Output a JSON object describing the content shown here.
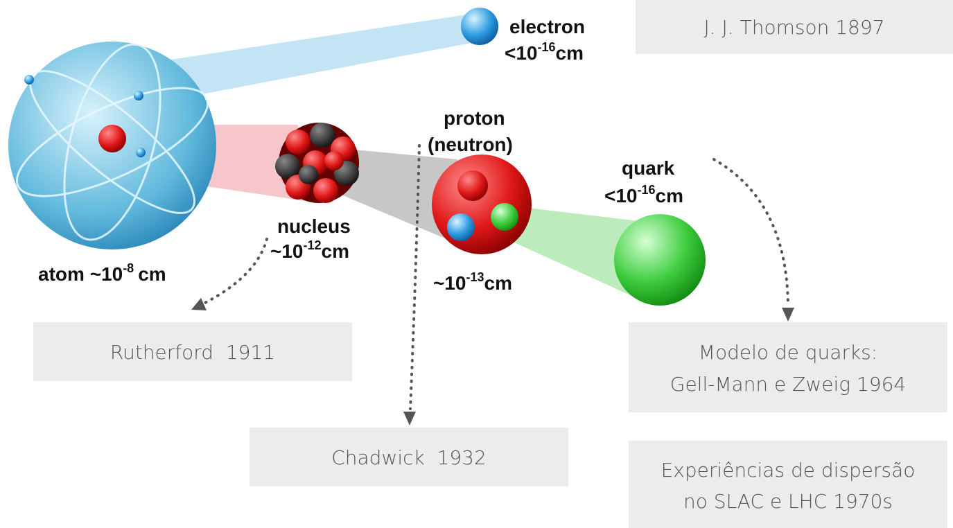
{
  "particles": [
    {
      "name": "electron",
      "size": {
        "prefix": "<10",
        "exponent": "-16",
        "unit": "cm"
      }
    },
    {
      "name": "atom",
      "size": {
        "prefix": "~10",
        "exponent": "-8",
        "unit": "cm"
      }
    },
    {
      "name": "nucleus",
      "size": {
        "prefix": "~10",
        "exponent": "-12",
        "unit": "cm"
      }
    },
    {
      "name": "proton",
      "alt": "(neutron)",
      "size": {
        "prefix": "~10",
        "exponent": "-13",
        "unit": "cm"
      }
    },
    {
      "name": "quark",
      "size": {
        "prefix": "<10",
        "exponent": "-16",
        "unit": "cm"
      }
    }
  ],
  "boxes": [
    {
      "lines": [
        "J. J. Thomson 1897"
      ]
    },
    {
      "lines": [
        "Rutherford  1911"
      ]
    },
    {
      "lines": [
        "Chadwick  1932"
      ]
    },
    {
      "lines": [
        "Modelo de quarks:",
        "Gell-Mann e Zweig 1964"
      ]
    },
    {
      "lines": [
        "Experiências de dispersão",
        "no SLAC e LHC 1970s"
      ]
    }
  ]
}
